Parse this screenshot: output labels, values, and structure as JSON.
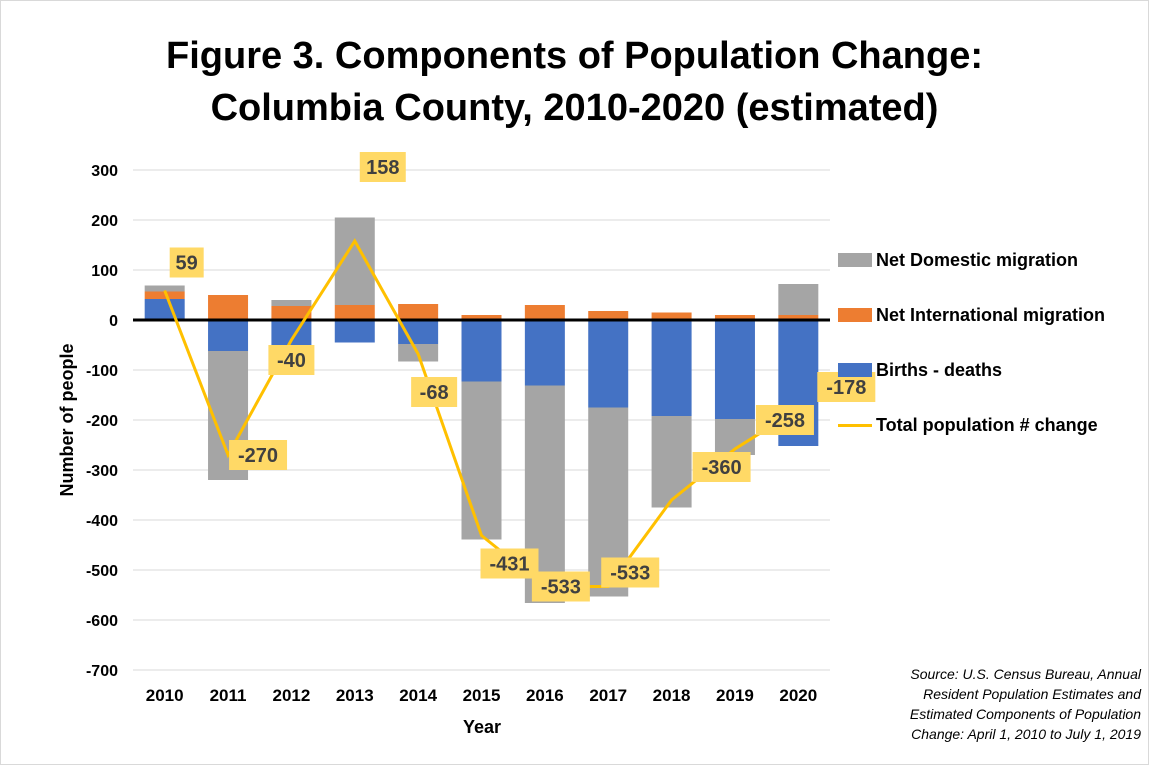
{
  "title_lines": [
    "Figure 3. Components of Population Change:",
    "Columbia County, 2010-2020 (estimated)"
  ],
  "colors": {
    "domestic": "#a5a5a5",
    "international": "#ed7d31",
    "births_deaths": "#4472c4",
    "total_line": "#ffc000",
    "label_box": "#ffd966",
    "gridline": "#d9d9d9",
    "zero_line": "#000000"
  },
  "chart_data": {
    "type": "bar",
    "stacked": true,
    "title": "Figure 3. Components of Population Change: Columbia County, 2010-2020 (estimated)",
    "xlabel": "Year",
    "ylabel": "Number of people",
    "ylim": [
      -700,
      300
    ],
    "yticks": [
      300,
      200,
      100,
      0,
      -100,
      -200,
      -300,
      -400,
      -500,
      -600,
      -700
    ],
    "grid": true,
    "legend_position": "right",
    "categories": [
      "2010",
      "2011",
      "2012",
      "2013",
      "2014",
      "2015",
      "2016",
      "2017",
      "2018",
      "2019",
      "2020"
    ],
    "series": [
      {
        "name": "Net Domestic migration",
        "type": "bar",
        "color": "#a5a5a5",
        "values": [
          12,
          -258,
          12,
          175,
          -35,
          -316,
          -435,
          -378,
          -183,
          -72,
          62
        ]
      },
      {
        "name": "Net International migration",
        "type": "bar",
        "color": "#ed7d31",
        "values": [
          15,
          50,
          28,
          30,
          32,
          10,
          30,
          18,
          15,
          10,
          10
        ]
      },
      {
        "name": "Births - deaths",
        "type": "bar",
        "color": "#4472c4",
        "values": [
          42,
          -62,
          -65,
          -45,
          -48,
          -123,
          -131,
          -175,
          -192,
          -198,
          -252
        ]
      },
      {
        "name": "Total population # change",
        "type": "line",
        "color": "#ffc000",
        "values": [
          59,
          -270,
          -40,
          158,
          -68,
          -431,
          -533,
          -533,
          -360,
          -258,
          -178
        ],
        "labels": [
          "59",
          "-270",
          "-40",
          "158",
          "-68",
          "-431",
          "-533",
          "-533",
          "-360",
          "-258",
          "-178"
        ]
      }
    ]
  },
  "source_lines": [
    "Source: U.S. Census Bureau, Annual",
    "Resident Population Estimates and",
    "Estimated Components of Population",
    "Change: April 1, 2010 to July 1, 2019"
  ]
}
